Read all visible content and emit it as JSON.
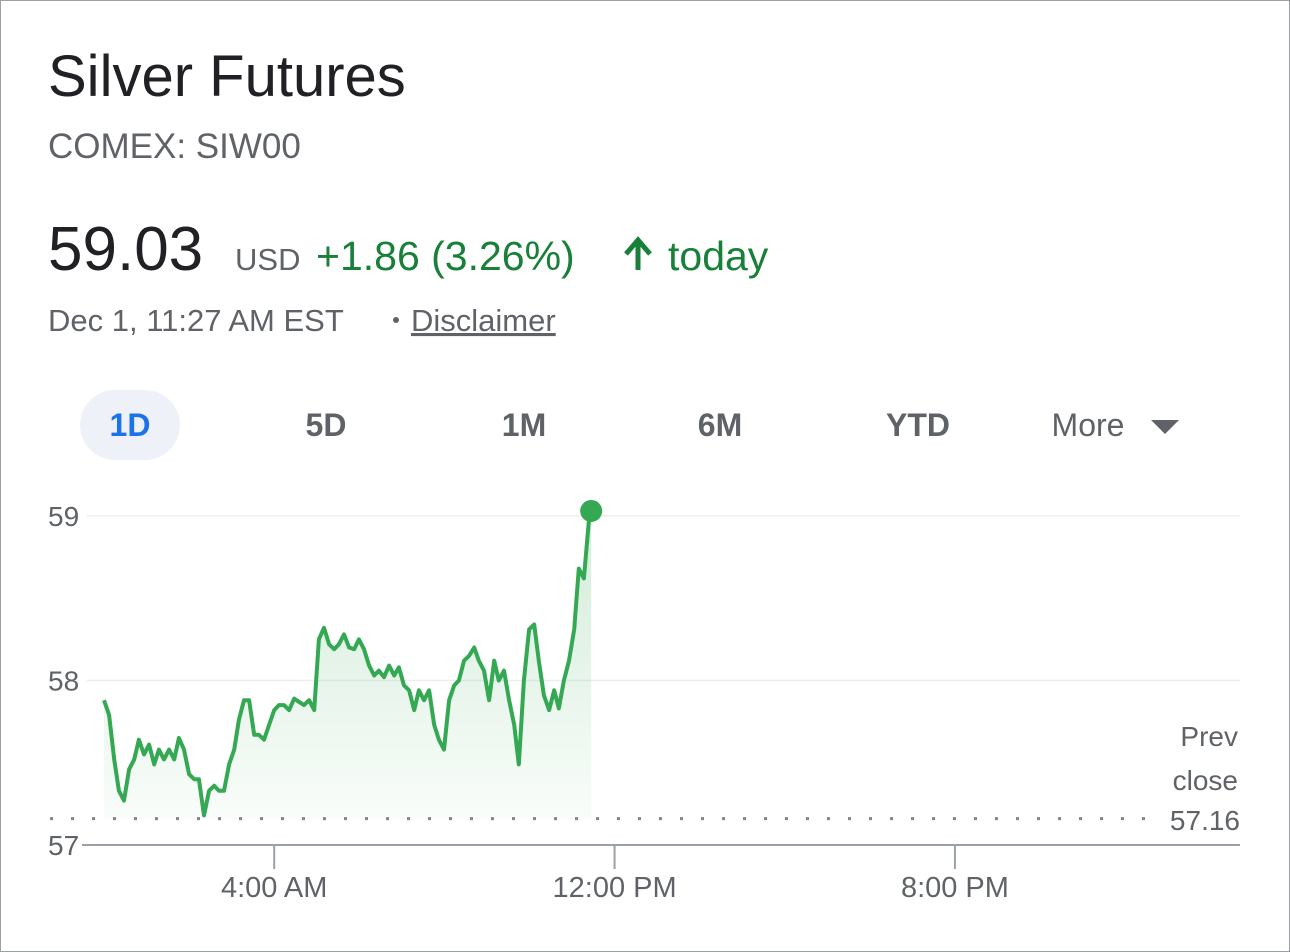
{
  "header": {
    "title": "Silver Futures",
    "subtitle": "COMEX: SIW00",
    "price": "59.03",
    "currency": "USD",
    "change": "+1.86 (3.26%)",
    "period": "today",
    "timestamp": "Dec 1, 11:27 AM EST",
    "disclaimer": "Disclaimer"
  },
  "tabs": [
    "1D",
    "5D",
    "1M",
    "6M",
    "YTD",
    "More"
  ],
  "chart_data": {
    "type": "line",
    "color": "#34a853",
    "grid": true,
    "x": [
      0,
      0.12,
      0.24,
      0.35,
      0.47,
      0.59,
      0.71,
      0.82,
      0.94,
      1.06,
      1.18,
      1.29,
      1.41,
      1.53,
      1.65,
      1.76,
      1.88,
      2.0,
      2.12,
      2.23,
      2.35,
      2.47,
      2.59,
      2.7,
      2.82,
      2.94,
      3.06,
      3.17,
      3.29,
      3.41,
      3.53,
      3.64,
      3.76,
      3.88,
      4.0,
      4.11,
      4.23,
      4.35,
      4.47,
      4.58,
      4.7,
      4.82,
      4.94,
      5.05,
      5.17,
      5.29,
      5.41,
      5.52,
      5.64,
      5.76,
      5.88,
      5.99,
      6.11,
      6.23,
      6.35,
      6.46,
      6.58,
      6.7,
      6.82,
      6.93,
      7.05,
      7.17,
      7.29,
      7.4,
      7.52,
      7.64,
      7.76,
      7.87,
      7.99,
      8.11,
      8.23,
      8.34,
      8.46,
      8.58,
      8.7,
      8.81,
      8.93,
      9.05,
      9.17,
      9.28,
      9.4,
      9.52,
      9.64,
      9.75,
      9.87,
      9.99,
      10.11,
      10.22,
      10.34,
      10.46,
      10.58,
      10.69,
      10.81,
      10.93,
      11.05,
      11.16,
      11.28,
      11.4,
      11.45
    ],
    "values": [
      57.88,
      57.79,
      57.52,
      57.33,
      57.27,
      57.46,
      57.52,
      57.64,
      57.55,
      57.61,
      57.49,
      57.58,
      57.52,
      57.58,
      57.52,
      57.65,
      57.58,
      57.43,
      57.4,
      57.4,
      57.18,
      57.33,
      57.36,
      57.33,
      57.33,
      57.49,
      57.58,
      57.76,
      57.88,
      57.88,
      57.67,
      57.67,
      57.64,
      57.73,
      57.82,
      57.85,
      57.85,
      57.82,
      57.89,
      57.87,
      57.85,
      57.88,
      57.82,
      58.25,
      58.32,
      58.22,
      58.19,
      58.22,
      58.28,
      58.2,
      58.19,
      58.25,
      58.19,
      58.09,
      58.03,
      58.06,
      58.02,
      58.09,
      58.03,
      58.08,
      57.97,
      57.94,
      57.82,
      57.94,
      57.88,
      57.94,
      57.73,
      57.64,
      57.58,
      57.88,
      57.97,
      58.0,
      58.12,
      58.15,
      58.2,
      58.12,
      58.06,
      57.88,
      58.12,
      58.0,
      58.06,
      57.88,
      57.73,
      57.49,
      58.0,
      58.31,
      58.34,
      58.12,
      57.91,
      57.82,
      57.94,
      57.83,
      58.0,
      58.12,
      58.31,
      58.68,
      58.62,
      58.98,
      59.03
    ],
    "xlim": [
      -0.4,
      26.7
    ],
    "xticks": [
      {
        "value": 4,
        "label": "4:00 AM"
      },
      {
        "value": 12,
        "label": "12:00 PM"
      },
      {
        "value": 20,
        "label": "8:00 PM"
      }
    ],
    "ylim": [
      57,
      59.2
    ],
    "yticks": [
      57,
      58,
      59
    ],
    "prev_close": {
      "label": "Prev close",
      "value": 57.16
    }
  }
}
